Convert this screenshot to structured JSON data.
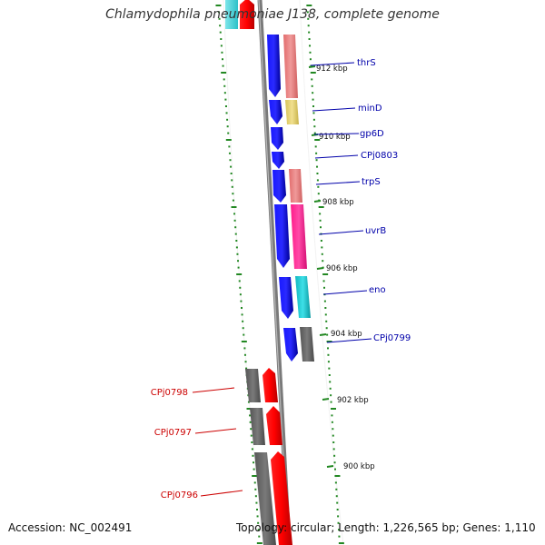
{
  "title": "Chlamydophila pneumoniae J138, complete genome",
  "footer": {
    "accession": "Accession: NC_002491",
    "summary": "Topology: circular; Length: 1,226,565 bp; Genes: 1,110"
  },
  "scale_labels": [
    "912 kbp",
    "910 kbp",
    "908 kbp",
    "906 kbp",
    "904 kbp",
    "902 kbp",
    "900 kbp"
  ],
  "genes": [
    {
      "name": "thrS",
      "strand": "forward",
      "color": "#0000cc"
    },
    {
      "name": "minD",
      "strand": "forward",
      "color": "#0000cc"
    },
    {
      "name": "gp6D",
      "strand": "forward",
      "color": "#0000cc"
    },
    {
      "name": "CPj0803",
      "strand": "forward",
      "color": "#0000cc"
    },
    {
      "name": "trpS",
      "strand": "forward",
      "color": "#0000cc"
    },
    {
      "name": "uvrB",
      "strand": "forward",
      "color": "#0000cc"
    },
    {
      "name": "eno",
      "strand": "forward",
      "color": "#0000cc"
    },
    {
      "name": "CPj0799",
      "strand": "forward",
      "color": "#0000cc"
    },
    {
      "name": "CPj0798",
      "strand": "reverse",
      "color": "#cc0000"
    },
    {
      "name": "CPj0797",
      "strand": "reverse",
      "color": "#cc0000"
    },
    {
      "name": "CPj0796",
      "strand": "reverse",
      "color": "#cc0000"
    }
  ],
  "colors": {
    "forward_strand": "#0000ff",
    "reverse_strand": "#ff0000",
    "backbone": "#808080",
    "ticks": "#228822",
    "cog_pink": "#e88b8b",
    "cog_yellow": "#e6d57a",
    "cog_salmon": "#e0857f",
    "cog_magenta": "#ff2b95",
    "cog_cyan": "#1ec8d0",
    "cog_gray": "#707070"
  }
}
